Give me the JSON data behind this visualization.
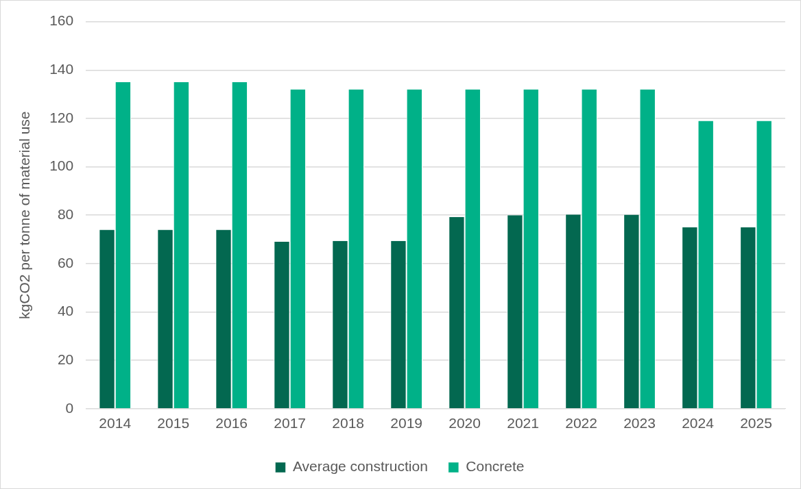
{
  "chart_data": {
    "type": "bar",
    "ylabel": "kgCO2 per tonne of material use",
    "categories": [
      "2014",
      "2015",
      "2016",
      "2017",
      "2018",
      "2019",
      "2020",
      "2021",
      "2022",
      "2023",
      "2024",
      "2025"
    ],
    "series": [
      {
        "name": "Average construction",
        "color": "#036850",
        "values": [
          74,
          74,
          74,
          69,
          69.4,
          69.4,
          79.3,
          80,
          80.3,
          80.2,
          75,
          75
        ]
      },
      {
        "name": "Concrete",
        "color": "#00b188",
        "values": [
          135,
          135,
          135,
          132,
          132,
          132,
          132,
          132,
          132,
          132,
          119,
          119
        ]
      }
    ],
    "ylim": [
      0,
      160
    ],
    "yticks": [
      0,
      20,
      40,
      60,
      80,
      100,
      120,
      140,
      160
    ],
    "grid": "y",
    "legend": "bottom"
  }
}
